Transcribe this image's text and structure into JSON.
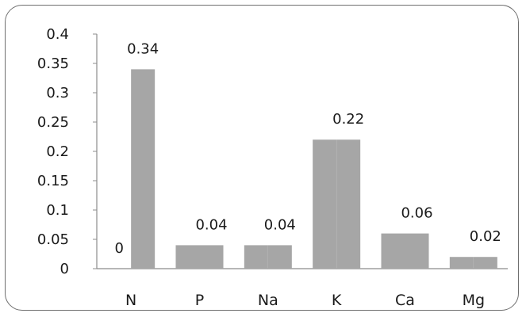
{
  "chart_data": {
    "type": "bar",
    "title": "",
    "xlabel": "",
    "ylabel": "",
    "categories": [
      "N",
      "P",
      "Na",
      "K",
      "Ca",
      "Mg"
    ],
    "series": [
      {
        "values": [
          0,
          0.04,
          0.04,
          0.22,
          0.06,
          0.02
        ]
      },
      {
        "values": [
          0.34,
          0.04,
          0.04,
          0.22,
          0.06,
          0.02
        ]
      }
    ],
    "bar_color": "#a6a6a6",
    "ylim": [
      0,
      0.4
    ],
    "yticks": [
      "0",
      "0.05",
      "0.1",
      "0.15",
      "0.2",
      "0.25",
      "0.3",
      "0.35",
      "0.4"
    ],
    "data_labels": {
      "series_1": [
        "0",
        "",
        "",
        "",
        "",
        ""
      ],
      "series_2": [
        "0.34",
        "0.04",
        "0.04",
        "0.22",
        "0.06",
        "0.02"
      ]
    },
    "grid": false,
    "legend": "none"
  }
}
